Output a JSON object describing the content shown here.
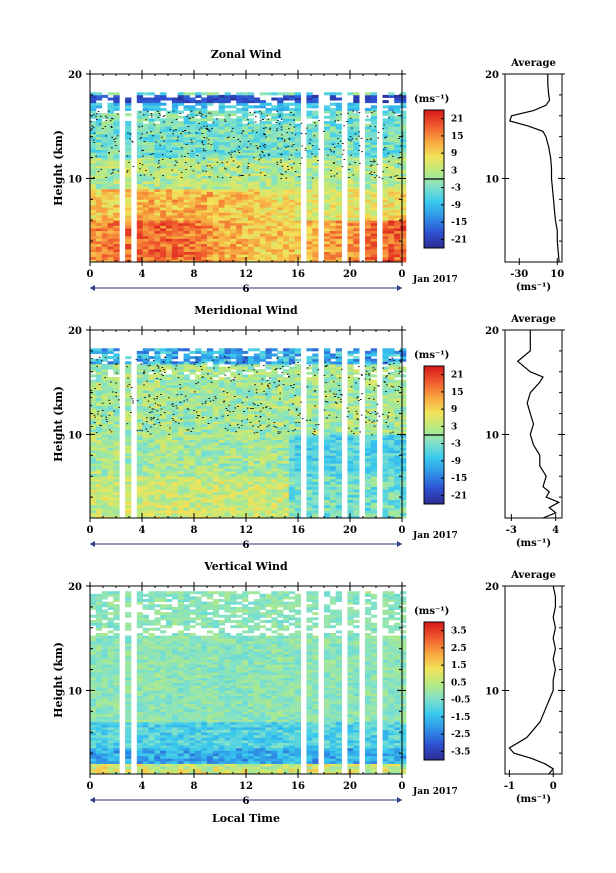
{
  "chart_data": [
    {
      "type": "heatmap",
      "title": "Zonal Wind",
      "ylabel": "Height (km)",
      "ylim": [
        2,
        20
      ],
      "yticks": [
        "20",
        "10"
      ],
      "xticks": [
        "0",
        "4",
        "8",
        "12",
        "16",
        "20",
        "0"
      ],
      "xlim": [
        0,
        24
      ],
      "date_label": "6",
      "date_suffix": "Jan 2017",
      "unit_label": "(ms⁻¹)",
      "colorbar_ticks": [
        "21",
        "15",
        "9",
        "3",
        "-3",
        "-9",
        "-15",
        "-21"
      ],
      "colorbar_range": [
        -24,
        24
      ],
      "average": {
        "title": "Average",
        "xticks": [
          "-30",
          "10"
        ],
        "xlim": [
          -45,
          15
        ],
        "unit": "(ms⁻¹)",
        "heights": [
          2,
          3,
          4,
          5,
          6,
          7,
          8,
          9,
          10,
          11,
          12,
          13,
          14,
          14.5,
          15,
          15.5,
          16,
          16.5,
          17,
          17.5,
          18,
          19,
          20
        ],
        "values": [
          12,
          11,
          10,
          10,
          8,
          7,
          6,
          5,
          4,
          4,
          3,
          1,
          -2,
          -5,
          -20,
          -40,
          -38,
          -15,
          -2,
          2,
          1,
          0,
          0
        ]
      }
    },
    {
      "type": "heatmap",
      "title": "Meridional Wind",
      "ylabel": "Height (km)",
      "ylim": [
        2,
        20
      ],
      "yticks": [
        "20",
        "10"
      ],
      "xticks": [
        "0",
        "4",
        "8",
        "12",
        "16",
        "20",
        "0"
      ],
      "xlim": [
        0,
        24
      ],
      "date_label": "6",
      "date_suffix": "Jan 2017",
      "unit_label": "(ms⁻¹)",
      "colorbar_ticks": [
        "21",
        "15",
        "9",
        "3",
        "-3",
        "-9",
        "-15",
        "-21"
      ],
      "colorbar_range": [
        -24,
        24
      ],
      "average": {
        "title": "Average",
        "xticks": [
          "-3",
          "4"
        ],
        "xlim": [
          -4,
          5
        ],
        "unit": "(ms⁻¹)",
        "heights": [
          2,
          2.5,
          3,
          3.5,
          4,
          4.5,
          5,
          6,
          7,
          8,
          9,
          10,
          11,
          12,
          13,
          14,
          15,
          15.5,
          16,
          17,
          17.5,
          18,
          19,
          20
        ],
        "values": [
          2,
          4,
          3,
          4.5,
          2.5,
          3,
          2,
          2.5,
          1.5,
          1.5,
          0.5,
          0,
          0.5,
          0,
          -0.5,
          0,
          1.5,
          2,
          0,
          -2,
          -1,
          0,
          0,
          0
        ]
      }
    },
    {
      "type": "heatmap",
      "title": "Vertical Wind",
      "ylabel": "Height (km)",
      "ylim": [
        2,
        20
      ],
      "yticks": [
        "20",
        "10"
      ],
      "xticks": [
        "0",
        "4",
        "8",
        "12",
        "16",
        "20",
        "0"
      ],
      "xlim": [
        0,
        24
      ],
      "date_label": "6",
      "date_suffix": "Jan 2017",
      "xlabel": "Local Time",
      "unit_label": "(ms⁻¹)",
      "colorbar_ticks": [
        "3.5",
        "2.5",
        "1.5",
        "0.5",
        "-0.5",
        "-1.5",
        "-2.5",
        "-3.5"
      ],
      "colorbar_range": [
        -4,
        4
      ],
      "average": {
        "title": "Average",
        "xticks": [
          "-1",
          "0"
        ],
        "xlim": [
          -1.1,
          0.2
        ],
        "unit": "(ms⁻¹)",
        "heights": [
          2,
          2.5,
          3,
          3.5,
          4,
          4.5,
          5,
          5.5,
          6,
          7,
          8,
          9,
          10,
          11,
          12,
          13,
          14,
          15,
          16,
          17,
          18,
          19,
          20
        ],
        "values": [
          -0.1,
          0,
          -0.2,
          -0.5,
          -0.9,
          -1.0,
          -0.8,
          -0.6,
          -0.5,
          -0.3,
          -0.2,
          -0.1,
          0,
          0,
          0.05,
          0,
          0.05,
          0,
          0.05,
          0,
          0.05,
          0.05,
          0
        ]
      }
    }
  ]
}
